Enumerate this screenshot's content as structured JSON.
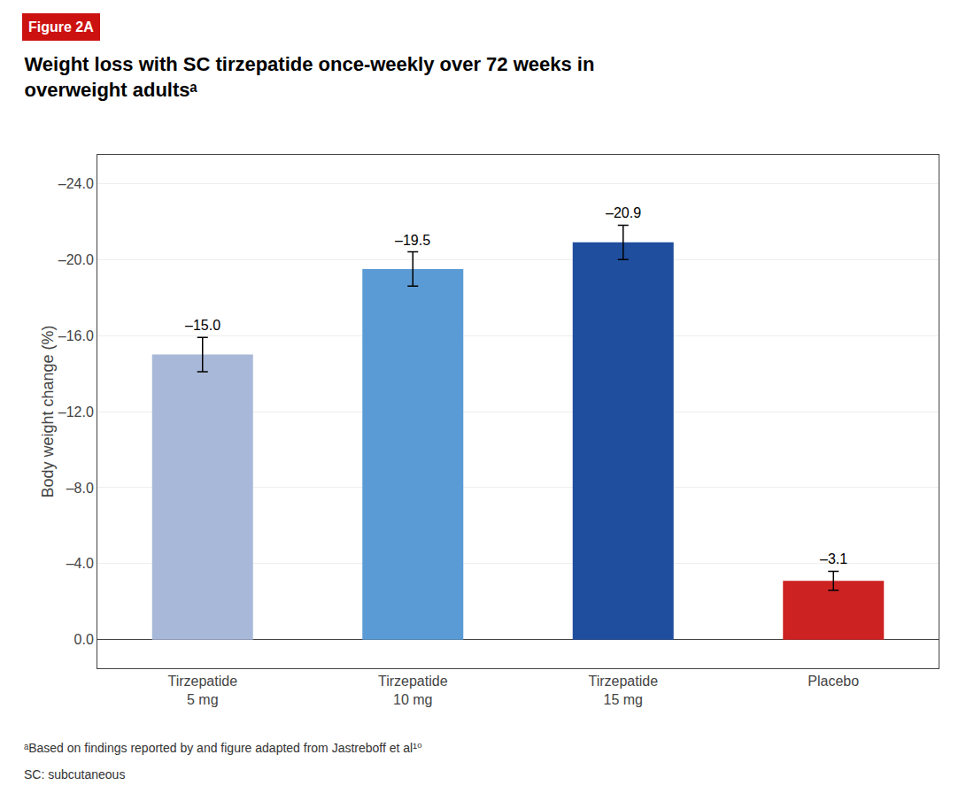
{
  "chart_data": {
    "type": "bar",
    "title": "Weight loss with SC tirzepatide once-weekly over 72 weeks in\noverweight adultsᵃ",
    "ylabel": "Body weight change (%)",
    "categories": [
      "Tirzepatide\n5 mg",
      "Tirzepatide\n10 mg",
      "Tirzepatide\n15 mg",
      "Placebo"
    ],
    "values": [
      -15.0,
      -19.5,
      -20.9,
      -3.1
    ],
    "errors": [
      0.9,
      0.9,
      0.9,
      0.5
    ],
    "value_labels": [
      "–15.0",
      "–19.5",
      "–20.9",
      "–3.1"
    ],
    "data_labels": true,
    "colors": [
      "#a8b8d8",
      "#5b9bd5",
      "#1f4e9e",
      "#cc2222"
    ],
    "ylim": [
      1.5,
      -25.5
    ],
    "yticks": [
      {
        "value": 0.0,
        "label": "0.0"
      },
      {
        "value": -4.0,
        "label": "–4.0"
      },
      {
        "value": -8.0,
        "label": "–8.0"
      },
      {
        "value": -12.0,
        "label": "–12.0"
      },
      {
        "value": -16.0,
        "label": "–16.0"
      },
      {
        "value": -20.0,
        "label": "–20.0"
      },
      {
        "value": -24.0,
        "label": "–24.0"
      }
    ],
    "grid": true,
    "annotations": [
      "Figure 2A",
      "ᵃBased on findings reported by and figure adapted from Jastreboff et al¹⁰",
      "SC: subcutaneous"
    ]
  }
}
